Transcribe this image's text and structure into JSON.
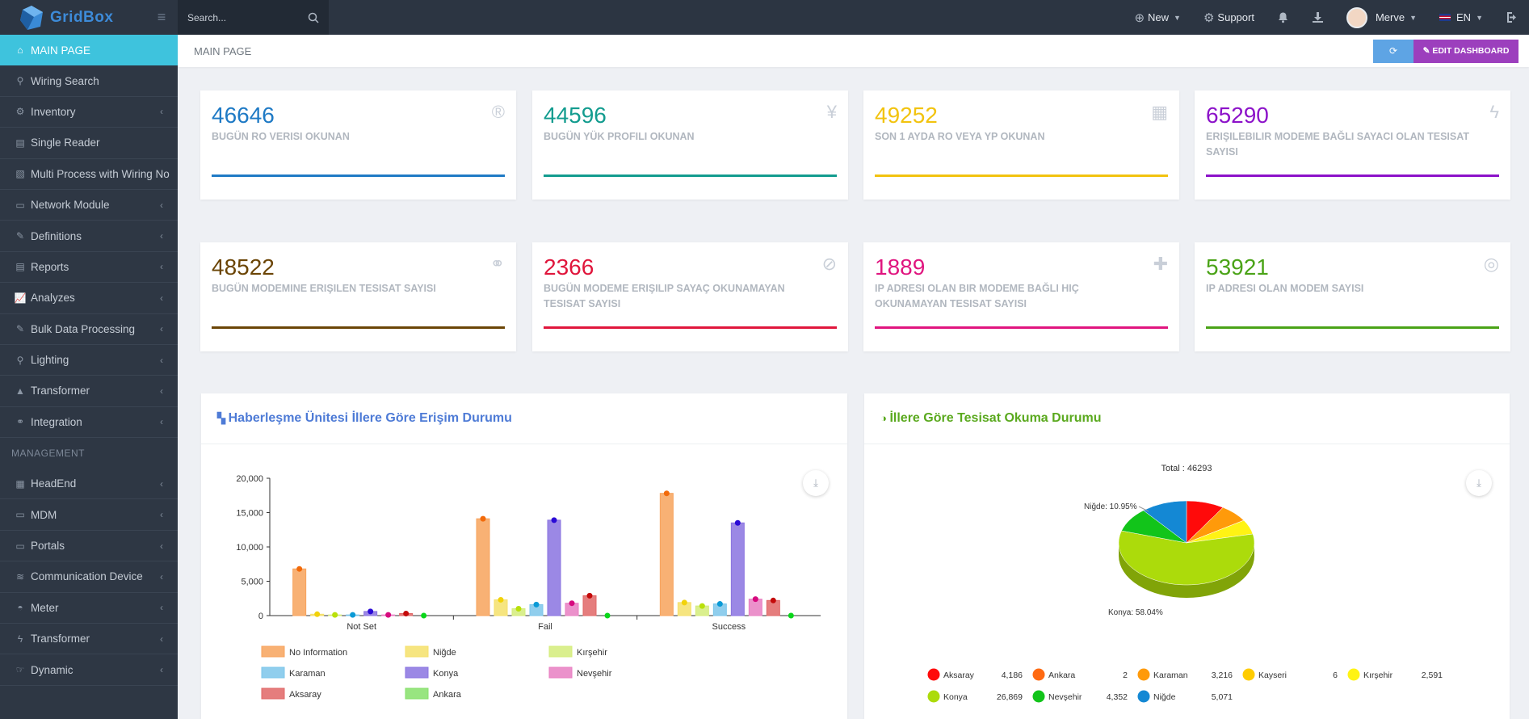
{
  "app": {
    "name": "GridBox"
  },
  "search": {
    "placeholder": "Search..."
  },
  "topbar": {
    "new_label": "New",
    "support_label": "Support",
    "user_name": "Merve",
    "lang": "EN"
  },
  "breadcrumb": {
    "current": "MAIN PAGE"
  },
  "actions": {
    "edit_label": "EDIT DASHBOARD"
  },
  "sidebar": {
    "items": [
      {
        "label": "MAIN PAGE",
        "icon": "home-icon",
        "chevron": false
      },
      {
        "label": "Wiring Search",
        "icon": "search-icon",
        "chevron": false
      },
      {
        "label": "Inventory",
        "icon": "cogs-icon",
        "chevron": true
      },
      {
        "label": "Single Reader",
        "icon": "reader-icon",
        "chevron": false
      },
      {
        "label": "Multi Process with Wiring No",
        "icon": "file-icon",
        "chevron": false
      },
      {
        "label": "Network Module",
        "icon": "network-icon",
        "chevron": true
      },
      {
        "label": "Definitions",
        "icon": "edit-icon",
        "chevron": true
      },
      {
        "label": "Reports",
        "icon": "report-icon",
        "chevron": true
      },
      {
        "label": "Analyzes",
        "icon": "chart-icon",
        "chevron": true
      },
      {
        "label": "Bulk Data Processing",
        "icon": "edit-icon",
        "chevron": true
      },
      {
        "label": "Lighting",
        "icon": "bulb-icon",
        "chevron": true
      },
      {
        "label": "Transformer",
        "icon": "warning-icon",
        "chevron": true
      },
      {
        "label": "Integration",
        "icon": "link-icon",
        "chevron": true
      }
    ],
    "section_label": "MANAGEMENT",
    "mgmt_items": [
      {
        "label": "HeadEnd",
        "icon": "server-icon",
        "chevron": true
      },
      {
        "label": "MDM",
        "icon": "monitor-icon",
        "chevron": true
      },
      {
        "label": "Portals",
        "icon": "desktop-icon",
        "chevron": true
      },
      {
        "label": "Communication Device",
        "icon": "wifi-icon",
        "chevron": true
      },
      {
        "label": "Meter",
        "icon": "meter-icon",
        "chevron": true
      },
      {
        "label": "Transformer",
        "icon": "bolt-icon",
        "chevron": true
      },
      {
        "label": "Dynamic",
        "icon": "hand-icon",
        "chevron": true
      }
    ]
  },
  "stats": [
    {
      "value": "46646",
      "label": "BUGÜN RO VERISI OKUNAN",
      "color": "#1f7ac5",
      "icon": "registered-icon"
    },
    {
      "value": "44596",
      "label": "BUGÜN YÜK PROFILI OKUNAN",
      "color": "#139c8f",
      "icon": "yen-icon"
    },
    {
      "value": "49252",
      "label": "SON 1 AYDA RO VEYA YP OKUNAN",
      "color": "#f2c30f",
      "icon": "calendar-icon"
    },
    {
      "value": "65290",
      "label": "ERIŞILEBILIR MODEME BAĞLI SAYACI OLAN TESISAT SAYISI",
      "color": "#8c12c9",
      "icon": "bolt-icon"
    },
    {
      "value": "48522",
      "label": "BUGÜN MODEMINE ERIŞILEN TESISAT SAYISI",
      "color": "#6b4506",
      "icon": "link-icon"
    },
    {
      "value": "2366",
      "label": "BUGÜN MODEME ERIŞILIP SAYAÇ OKUNAMAYAN TESISAT SAYISI",
      "color": "#e0163c",
      "icon": "ban-icon"
    },
    {
      "value": "1889",
      "label": "IP ADRESI OLAN BIR MODEME BAĞLI HIÇ OKUNAMAYAN TESISAT SAYISI",
      "color": "#e0157f",
      "icon": "ambulance-icon"
    },
    {
      "value": "53921",
      "label": "IP ADRESI OLAN MODEM SAYISI",
      "color": "#4aa317",
      "icon": "target-icon"
    }
  ],
  "bar_panel": {
    "title": "Haberleşme Ünitesi İllere Göre Erişim Durumu"
  },
  "pie_panel": {
    "title": "İllere Göre Tesisat Okuma Durumu"
  },
  "chart_data": [
    {
      "type": "bar",
      "title": "Haberleşme Ünitesi İllere Göre Erişim Durumu",
      "categories": [
        "Not Set",
        "Fail",
        "Success"
      ],
      "ylim": [
        0,
        20000
      ],
      "yticks": [
        "0",
        "5,000",
        "10,000",
        "15,000",
        "20,000"
      ],
      "series": [
        {
          "name": "No Information",
          "color": "#f7a35c",
          "values": [
            6800,
            14100,
            17800
          ]
        },
        {
          "name": "Niğde",
          "color": "#f5e06a",
          "values": [
            200,
            2300,
            1900
          ]
        },
        {
          "name": "Kırşehir",
          "color": "#d4ec7a",
          "values": [
            100,
            1000,
            1400
          ]
        },
        {
          "name": "Karaman",
          "color": "#7cc6ea",
          "values": [
            100,
            1600,
            1700
          ]
        },
        {
          "name": "Konya",
          "color": "#8a73e0",
          "values": [
            600,
            13900,
            13500
          ]
        },
        {
          "name": "Nevşehir",
          "color": "#e87ec2",
          "values": [
            100,
            1800,
            2400
          ]
        },
        {
          "name": "Aksaray",
          "color": "#e06666",
          "values": [
            300,
            2900,
            2200
          ]
        },
        {
          "name": "Ankara",
          "color": "#86e06a",
          "values": [
            0,
            0,
            0
          ]
        }
      ]
    },
    {
      "type": "pie",
      "title": "Total : 46293",
      "series": [
        {
          "name": "Aksaray",
          "value": 4186,
          "label": "4,186",
          "color": "#ff0a0a"
        },
        {
          "name": "Ankara",
          "value": 2,
          "label": "2",
          "color": "#ff6a12"
        },
        {
          "name": "Karaman",
          "value": 3216,
          "label": "3,216",
          "color": "#ff9a0a"
        },
        {
          "name": "Kayseri",
          "value": 6,
          "label": "6",
          "color": "#ffcc00"
        },
        {
          "name": "Kırşehir",
          "value": 2591,
          "label": "2,591",
          "color": "#fff314"
        },
        {
          "name": "Konya",
          "value": 26869,
          "label": "26,869",
          "color": "#acdb0b"
        },
        {
          "name": "Nevşehir",
          "value": 4352,
          "label": "4,352",
          "color": "#12c41a"
        },
        {
          "name": "Niğde",
          "value": 5071,
          "label": "5,071",
          "color": "#1488d4"
        }
      ],
      "annotations": [
        "Niğde: 10.95%",
        "Konya: 58.04%"
      ]
    }
  ]
}
